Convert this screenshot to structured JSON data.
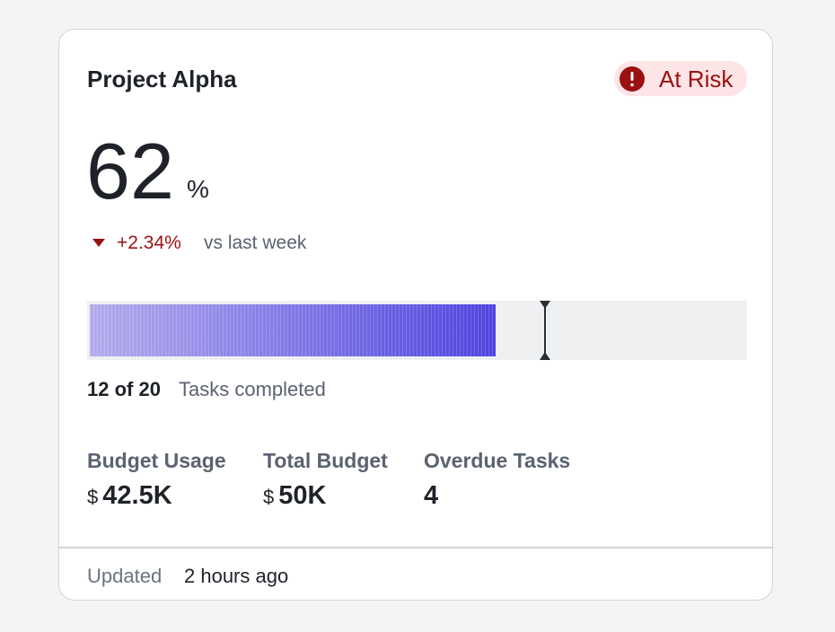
{
  "header": {
    "title": "Project Alpha",
    "status": "At Risk"
  },
  "kpi": {
    "value": 62,
    "unit": "%",
    "delta": "+2.34%",
    "delta_caption": "vs last week"
  },
  "progress": {
    "count": "12 of 20",
    "caption": "Tasks completed"
  },
  "stats": [
    {
      "label": "Budget Usage",
      "currency": "$",
      "value": "42.5K"
    },
    {
      "label": "Total Budget",
      "currency": "$",
      "value": "50K"
    },
    {
      "label": "Overdue Tasks",
      "value": "4"
    }
  ],
  "footer": {
    "label": "Updated",
    "time": "2 hours ago"
  }
}
